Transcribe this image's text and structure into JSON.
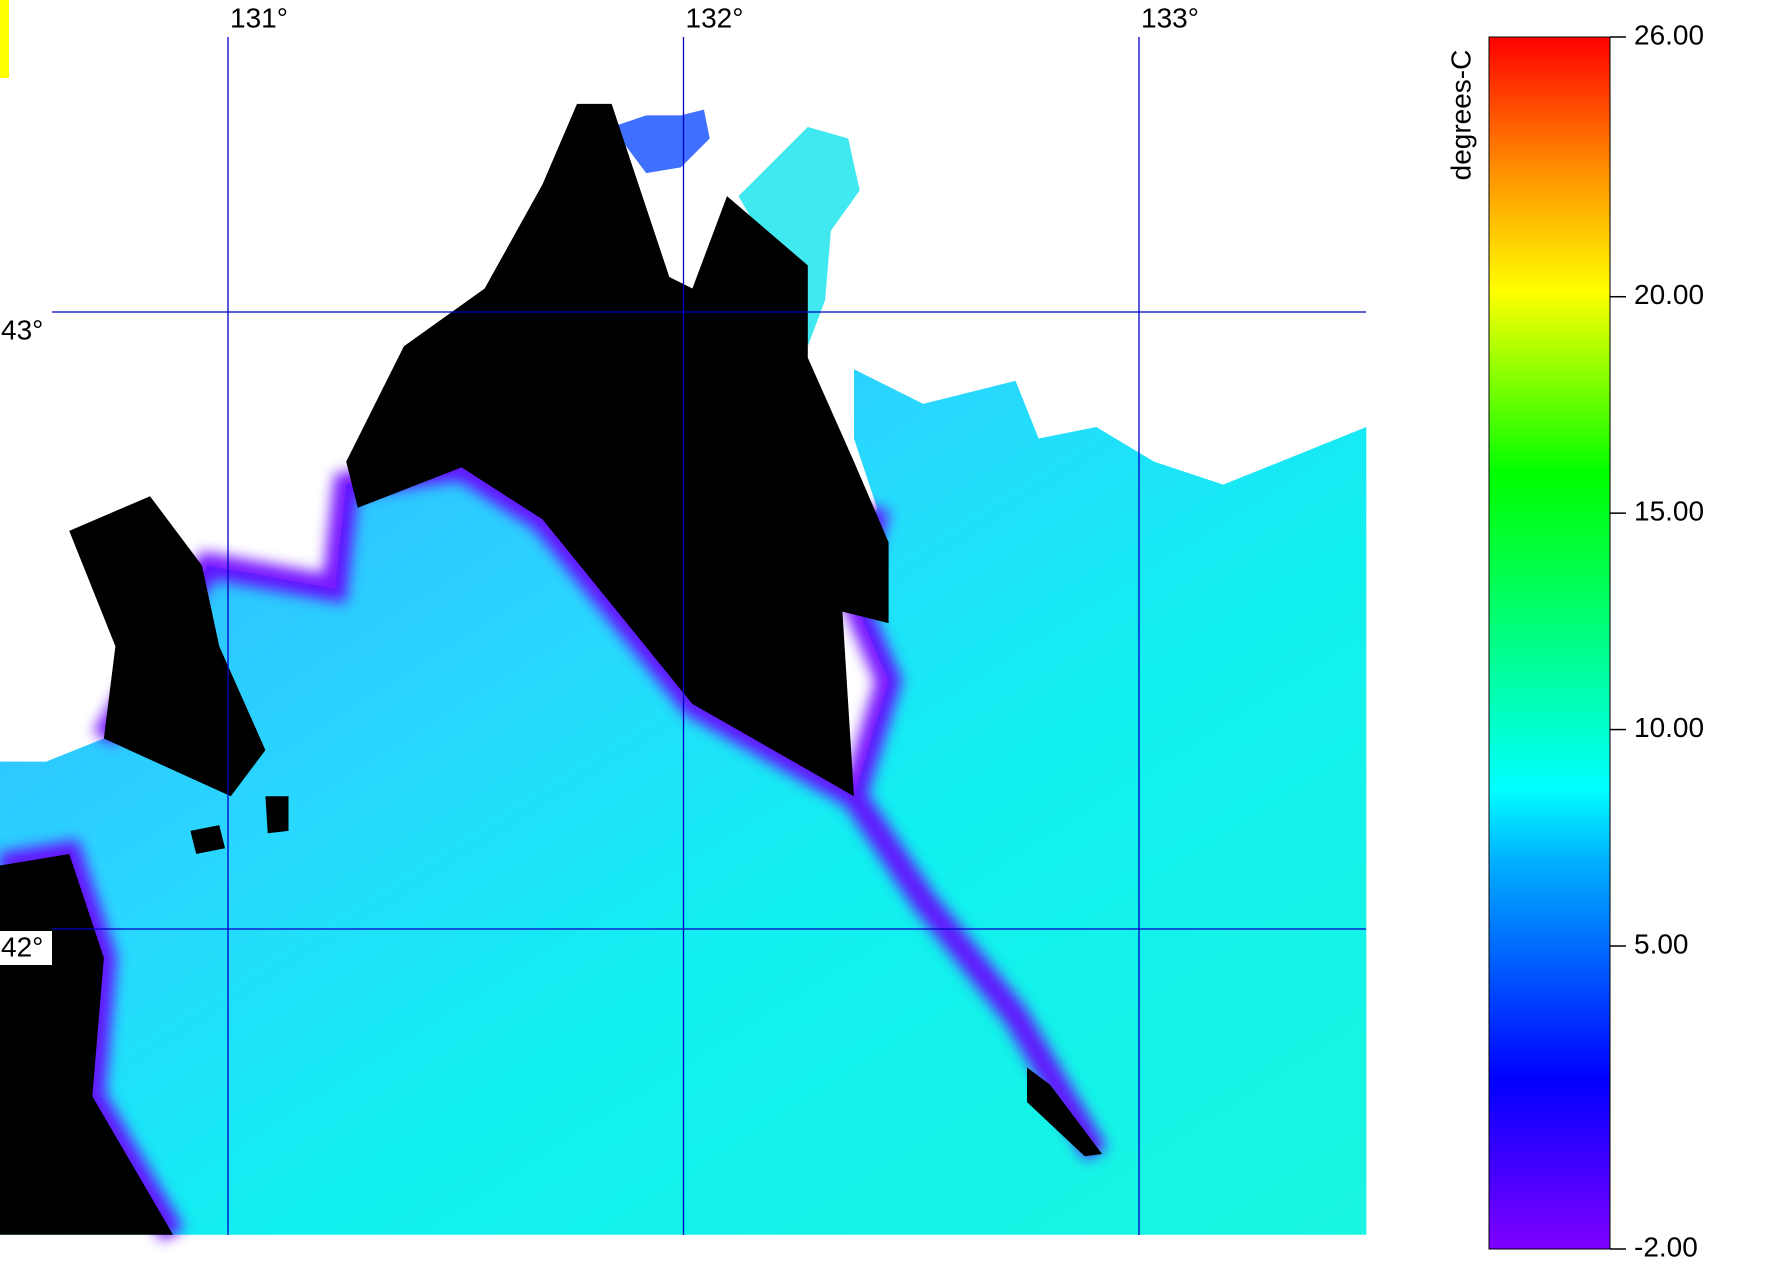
{
  "map": {
    "lon_ticks": [
      {
        "value": 131,
        "label": "131°"
      },
      {
        "value": 132,
        "label": "132°"
      },
      {
        "value": 133,
        "label": "133°"
      }
    ],
    "lat_ticks": [
      {
        "value": 43,
        "label": "43°"
      },
      {
        "value": 42,
        "label": "42°"
      }
    ]
  },
  "colorbar": {
    "label": "degrees-C",
    "range": [
      -2,
      26
    ],
    "ticks": [
      {
        "value": 26,
        "label": "26.00"
      },
      {
        "value": 20,
        "label": "20.00"
      },
      {
        "value": 15,
        "label": "15.00"
      },
      {
        "value": 10,
        "label": "10.00"
      },
      {
        "value": 5,
        "label": "5.00"
      },
      {
        "value": -2,
        "label": "-2.00"
      }
    ]
  }
}
